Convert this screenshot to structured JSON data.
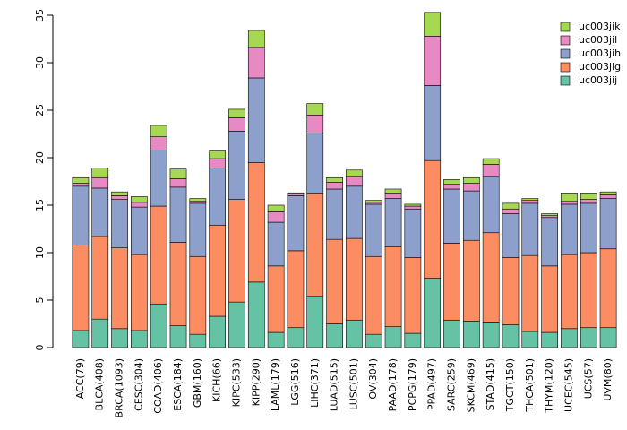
{
  "chart_data": {
    "type": "stacked-bar",
    "title": "",
    "xlabel": "",
    "ylabel": "",
    "ylim": [
      0,
      35
    ],
    "yticks": [
      0,
      5,
      10,
      15,
      20,
      25,
      30,
      35
    ],
    "legend_position": "top-right",
    "categories": [
      "ACC(79)",
      "BLCA(408)",
      "BRCA(1093)",
      "CESC(304)",
      "COAD(406)",
      "ESCA(184)",
      "GBM(160)",
      "KICH(66)",
      "KIPC(533)",
      "KIPP(290)",
      "LAML(179)",
      "LGG(516)",
      "LIHC(371)",
      "LUAD(515)",
      "LUSC(501)",
      "OV(304)",
      "PAAD(178)",
      "PCPG(179)",
      "PPAD(497)",
      "SARC(259)",
      "SKCM(469)",
      "STAD(415)",
      "TGCT(150)",
      "THCA(501)",
      "THYM(120)",
      "UCEC(545)",
      "UCS(57)",
      "UVM(80)"
    ],
    "series": [
      {
        "name": "uc003jij",
        "color": "#66c2a5",
        "values": [
          1.8,
          3.0,
          2.0,
          1.8,
          4.6,
          2.3,
          1.4,
          3.3,
          4.8,
          6.9,
          1.6,
          2.1,
          5.4,
          2.5,
          2.9,
          1.4,
          2.2,
          1.5,
          7.3,
          2.9,
          2.8,
          2.7,
          2.4,
          1.7,
          1.6,
          2.0,
          2.1,
          2.1
        ]
      },
      {
        "name": "uc003jig",
        "color": "#fc8d62",
        "values": [
          9.0,
          8.7,
          8.5,
          8.0,
          10.3,
          8.8,
          8.2,
          9.6,
          10.8,
          12.6,
          7.0,
          8.1,
          10.8,
          8.9,
          8.6,
          8.2,
          8.4,
          8.0,
          12.4,
          8.1,
          8.5,
          9.4,
          7.1,
          8.0,
          7.0,
          7.8,
          7.9,
          8.3
        ]
      },
      {
        "name": "uc003jih",
        "color": "#8da0cb",
        "values": [
          6.2,
          5.1,
          5.1,
          5.0,
          5.9,
          5.8,
          5.6,
          6.0,
          7.2,
          8.9,
          4.6,
          5.8,
          6.4,
          5.3,
          5.5,
          5.5,
          5.1,
          5.1,
          7.9,
          5.7,
          5.2,
          5.9,
          4.6,
          5.5,
          5.1,
          5.3,
          5.2,
          5.3
        ]
      },
      {
        "name": "uc003jil",
        "color": "#e78ac3",
        "values": [
          0.3,
          1.1,
          0.4,
          0.5,
          1.4,
          0.9,
          0.2,
          1.0,
          1.4,
          3.2,
          1.1,
          0.2,
          1.9,
          0.7,
          1.0,
          0.2,
          0.5,
          0.3,
          5.2,
          0.5,
          0.8,
          1.3,
          0.5,
          0.3,
          0.2,
          0.3,
          0.4,
          0.4
        ]
      },
      {
        "name": "uc003jik",
        "color": "#a6d854",
        "values": [
          0.6,
          1.0,
          0.4,
          0.6,
          1.2,
          1.0,
          0.3,
          0.8,
          0.9,
          1.8,
          0.7,
          0.1,
          1.2,
          0.5,
          0.7,
          0.2,
          0.5,
          0.2,
          2.5,
          0.5,
          0.6,
          0.6,
          0.6,
          0.2,
          0.2,
          0.8,
          0.6,
          0.3
        ]
      }
    ]
  }
}
